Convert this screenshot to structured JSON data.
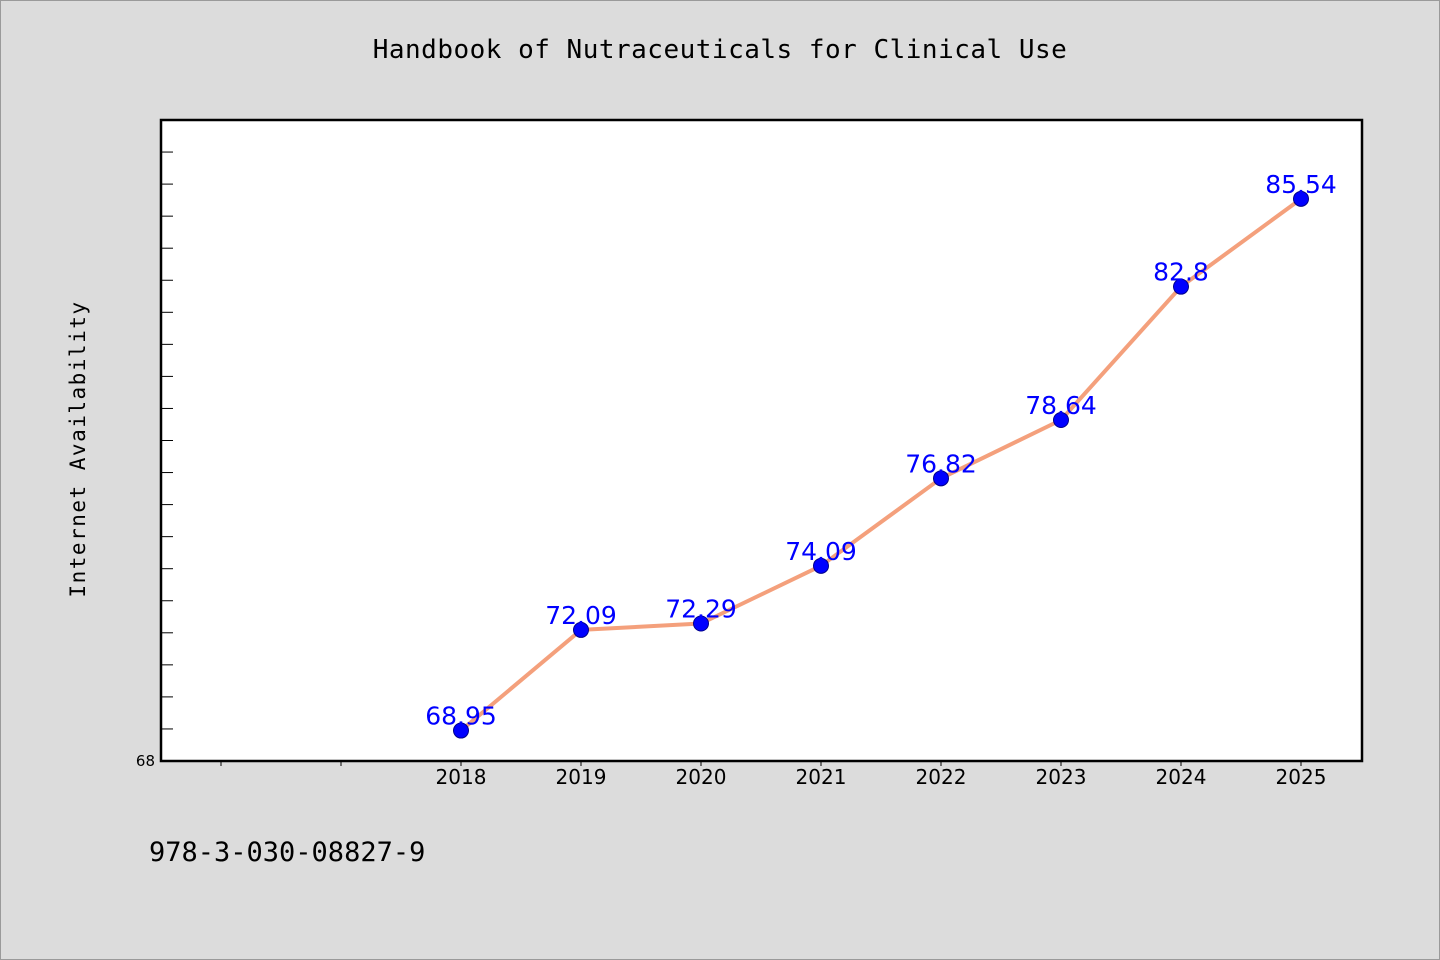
{
  "chart_data": {
    "type": "line",
    "title": "Handbook of Nutraceuticals for Clinical Use",
    "xlabel": "",
    "ylabel": "Internet Availability",
    "categories": [
      "2018",
      "2019",
      "2020",
      "2021",
      "2022",
      "2023",
      "2024",
      "2025"
    ],
    "series": [
      {
        "values": [
          68.95,
          72.09,
          72.29,
          74.09,
          76.82,
          78.64,
          82.8,
          85.54
        ],
        "labels": [
          "68.95",
          "72.09",
          "72.29",
          "74.09",
          "76.82",
          "78.64",
          "82.8",
          "85.54"
        ]
      }
    ],
    "ylim": [
      68,
      88
    ],
    "y_tick_labels": [
      "68"
    ],
    "grid": false,
    "line_color": "#f4a07c",
    "marker_color": "#0000ff",
    "label_color": "#0000ff"
  },
  "footer": {
    "isbn": "978-3-030-08827-9"
  }
}
